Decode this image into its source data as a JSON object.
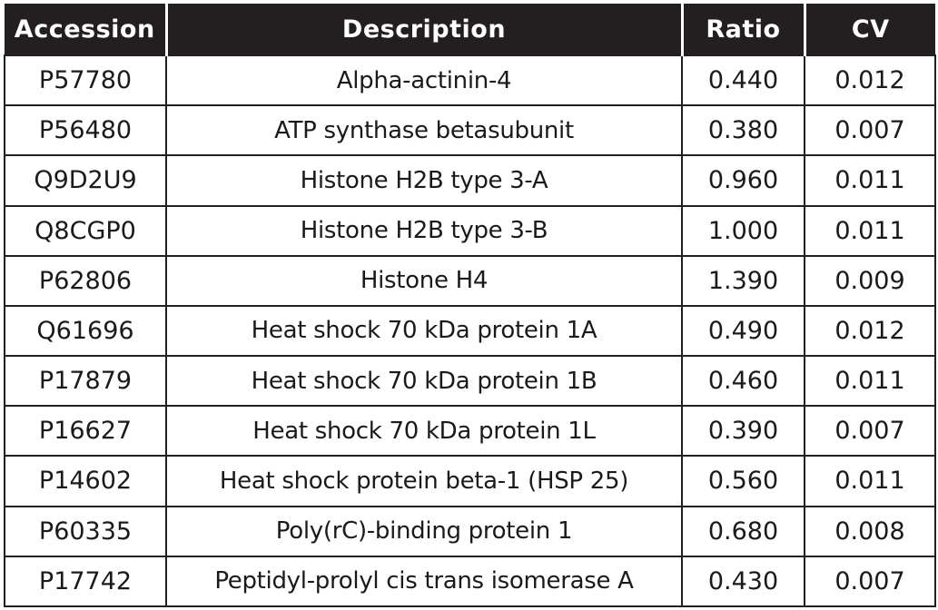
{
  "chart_data": {
    "type": "table",
    "columns": [
      "Accession",
      "Description",
      "Ratio",
      "CV"
    ],
    "rows": [
      {
        "accession": "P57780",
        "description": "Alpha-actinin-4",
        "ratio": "0.440",
        "cv": "0.012"
      },
      {
        "accession": "P56480",
        "description": "ATP synthase betasubunit",
        "ratio": "0.380",
        "cv": "0.007"
      },
      {
        "accession": "Q9D2U9",
        "description": "Histone H2B type 3-A",
        "ratio": "0.960",
        "cv": "0.011"
      },
      {
        "accession": "Q8CGP0",
        "description": "Histone H2B type 3-B",
        "ratio": "1.000",
        "cv": "0.011"
      },
      {
        "accession": "P62806",
        "description": "Histone H4",
        "ratio": "1.390",
        "cv": "0.009"
      },
      {
        "accession": "Q61696",
        "description": "Heat shock 70 kDa protein 1A",
        "ratio": "0.490",
        "cv": "0.012"
      },
      {
        "accession": "P17879",
        "description": "Heat shock 70 kDa protein 1B",
        "ratio": "0.460",
        "cv": "0.011"
      },
      {
        "accession": "P16627",
        "description": "Heat shock 70 kDa protein 1L",
        "ratio": "0.390",
        "cv": "0.007"
      },
      {
        "accession": "P14602",
        "description": "Heat shock protein beta-1 (HSP 25)",
        "ratio": "0.560",
        "cv": "0.011"
      },
      {
        "accession": "P60335",
        "description": "Poly(rC)-binding protein 1",
        "ratio": "0.680",
        "cv": "0.008"
      },
      {
        "accession": "P17742",
        "description": "Peptidyl-prolyl cis trans isomerase A",
        "ratio": "0.430",
        "cv": "0.007"
      }
    ]
  },
  "colors": {
    "header_background": "#231f20",
    "header_text": "#ffffff",
    "cell_text": "#1a1a1a",
    "grid_line": "#231f20"
  }
}
